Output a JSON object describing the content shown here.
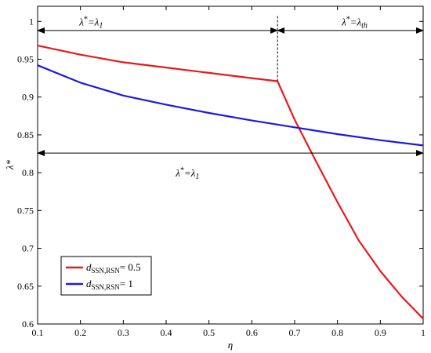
{
  "chart_data": {
    "type": "line",
    "xlabel": "η",
    "ylabel": "λ*",
    "xlim": [
      0.1,
      1.0
    ],
    "ylim": [
      0.6,
      1.02
    ],
    "xticks": [
      "0.1",
      "0.2",
      "0.3",
      "0.4",
      "0.5",
      "0.6",
      "0.7",
      "0.8",
      "0.9",
      "1"
    ],
    "yticks": [
      "0.6",
      "0.65",
      "0.7",
      "0.75",
      "0.8",
      "0.85",
      "0.9",
      "0.95",
      "1"
    ],
    "xtick_values": [
      0.1,
      0.2,
      0.3,
      0.4,
      0.5,
      0.6,
      0.7,
      0.8,
      0.9,
      1.0
    ],
    "ytick_values": [
      0.6,
      0.65,
      0.7,
      0.75,
      0.8,
      0.85,
      0.9,
      0.95,
      1.0
    ],
    "grid": false,
    "legend": "bottom-left",
    "series": [
      {
        "name": "d_SSN,RSN = 0.5",
        "legend_main": "d",
        "legend_sub": "SSN,RSN",
        "legend_tail": "= 0.5",
        "color": "#e81a1a",
        "x": [
          0.1,
          0.2,
          0.3,
          0.4,
          0.5,
          0.6,
          0.66,
          0.7,
          0.75,
          0.8,
          0.85,
          0.9,
          0.95,
          1.0
        ],
        "y": [
          0.968,
          0.956,
          0.946,
          0.939,
          0.932,
          0.925,
          0.921,
          0.87,
          0.815,
          0.761,
          0.71,
          0.67,
          0.636,
          0.607
        ]
      },
      {
        "name": "d_SSN,RSN = 1",
        "legend_main": "d",
        "legend_sub": "SSN,RSN",
        "legend_tail": "= 1",
        "color": "#1a1ae0",
        "x": [
          0.1,
          0.2,
          0.3,
          0.4,
          0.5,
          0.6,
          0.7,
          0.8,
          0.9,
          1.0
        ],
        "y": [
          0.942,
          0.919,
          0.902,
          0.89,
          0.879,
          0.869,
          0.86,
          0.851,
          0.843,
          0.836
        ]
      }
    ],
    "annotations": [
      {
        "text": "λ*=λ1",
        "main": "λ",
        "star": "*",
        "eq": "=λ",
        "sub": "1",
        "at": [
          0.225,
          1.0
        ]
      },
      {
        "text": "λ*=λth",
        "main": "λ",
        "star": "*",
        "eq": "=λ",
        "sub": "th",
        "at": [
          0.84,
          1.0
        ]
      },
      {
        "text": "λ*=λ1",
        "main": "λ",
        "star": "*",
        "eq": "=λ",
        "sub": "1",
        "at": [
          0.45,
          0.8
        ]
      }
    ],
    "arrows": [
      {
        "from": [
          0.1,
          0.988
        ],
        "to": [
          0.66,
          0.988
        ]
      },
      {
        "from": [
          0.66,
          0.988
        ],
        "to": [
          1.0,
          0.988
        ]
      },
      {
        "from": [
          0.1,
          0.826
        ],
        "to": [
          1.0,
          0.826
        ]
      }
    ],
    "vline": {
      "x": 0.66,
      "from": 0.921,
      "to": 1.008
    }
  }
}
